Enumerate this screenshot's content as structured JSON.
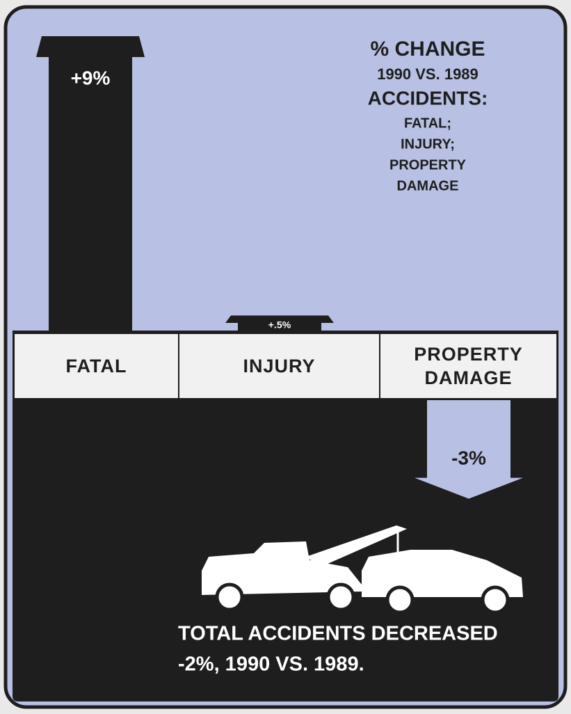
{
  "chart_data": {
    "type": "bar",
    "title": [
      "% CHANGE",
      "1990 VS. 1989",
      "ACCIDENTS:",
      "FATAL;",
      "INJURY;",
      "PROPERTY",
      "DAMAGE"
    ],
    "categories": [
      "FATAL",
      "INJURY",
      "PROPERTY DAMAGE"
    ],
    "values": [
      9,
      0.5,
      -3
    ],
    "value_labels": [
      "+9%",
      "+.5%",
      "-3%"
    ],
    "color": "#1e1e1e",
    "note": [
      "TOTAL ACCIDENTS DECREASED",
      "-2%, 1990 VS. 1989."
    ]
  }
}
